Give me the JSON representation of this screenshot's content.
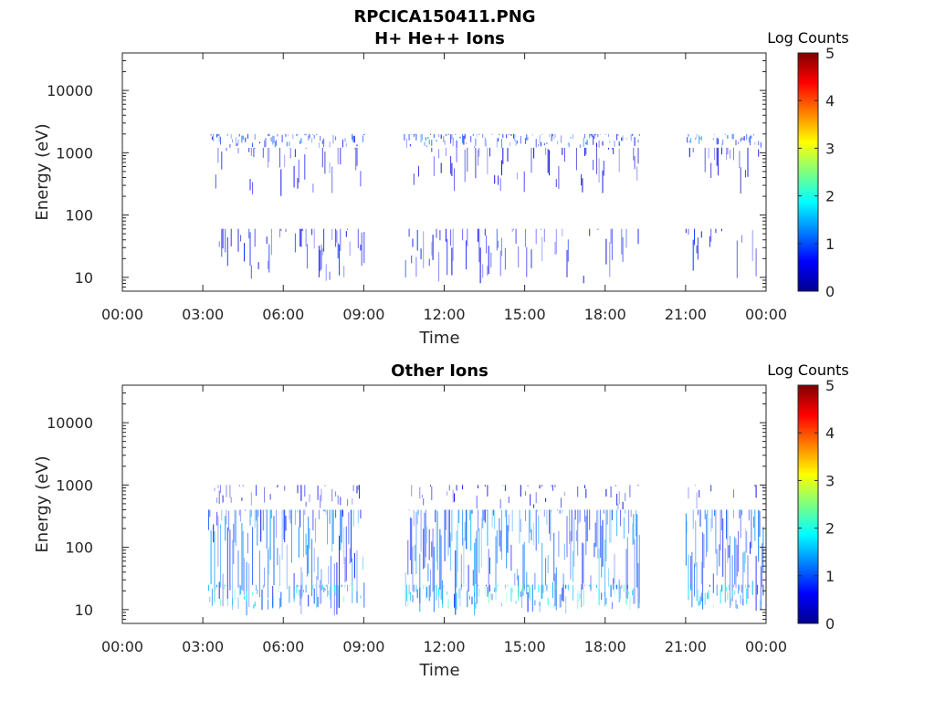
{
  "title": "RPCICA150411.PNG",
  "chart_data": [
    {
      "type": "heatmap",
      "title": "H+ He++ Ions",
      "xlabel": "Time",
      "ylabel": "Energy (eV)",
      "x_ticks": [
        "00:00",
        "03:00",
        "06:00",
        "09:00",
        "12:00",
        "15:00",
        "18:00",
        "21:00",
        "00:00"
      ],
      "x_range_hours": [
        0,
        24
      ],
      "y_scale": "log",
      "y_ticks": [
        "10",
        "100",
        "1000",
        "10000"
      ],
      "y_tick_values": [
        10,
        100,
        1000,
        10000
      ],
      "y_range": [
        6,
        40000
      ],
      "colorbar": {
        "label": "Log Counts",
        "ticks": [
          "0",
          "1",
          "2",
          "3",
          "4",
          "5"
        ],
        "range": [
          0,
          5
        ],
        "colormap": "jet"
      },
      "active_intervals_hours": [
        [
          3.2,
          9.0
        ],
        [
          10.5,
          19.3
        ],
        [
          21.0,
          23.9
        ]
      ],
      "bands": [
        {
          "e_min": 1200,
          "e_max": 2000,
          "level": 0.9,
          "density": 0.55
        },
        {
          "e_min": 200,
          "e_max": 1200,
          "level": 0.5,
          "density": 0.25
        },
        {
          "e_min": 8,
          "e_max": 60,
          "level": 0.6,
          "density": 0.3
        }
      ]
    },
    {
      "type": "heatmap",
      "title": "Other Ions",
      "xlabel": "Time",
      "ylabel": "Energy (eV)",
      "x_ticks": [
        "00:00",
        "03:00",
        "06:00",
        "09:00",
        "12:00",
        "15:00",
        "18:00",
        "21:00",
        "00:00"
      ],
      "x_range_hours": [
        0,
        24
      ],
      "y_scale": "log",
      "y_ticks": [
        "10",
        "100",
        "1000",
        "10000"
      ],
      "y_tick_values": [
        10,
        100,
        1000,
        10000
      ],
      "y_range": [
        6,
        40000
      ],
      "colorbar": {
        "label": "Log Counts",
        "ticks": [
          "0",
          "1",
          "2",
          "3",
          "4",
          "5"
        ],
        "range": [
          0,
          5
        ],
        "colormap": "jet"
      },
      "active_intervals_hours": [
        [
          3.2,
          9.0
        ],
        [
          10.5,
          19.3
        ],
        [
          21.0,
          23.9
        ]
      ],
      "bands": [
        {
          "e_min": 8,
          "e_max": 400,
          "level": 1.1,
          "density": 0.85
        },
        {
          "e_min": 10,
          "e_max": 25,
          "level": 1.7,
          "density": 0.5
        },
        {
          "e_min": 400,
          "e_max": 1000,
          "level": 0.5,
          "density": 0.25
        }
      ]
    }
  ]
}
